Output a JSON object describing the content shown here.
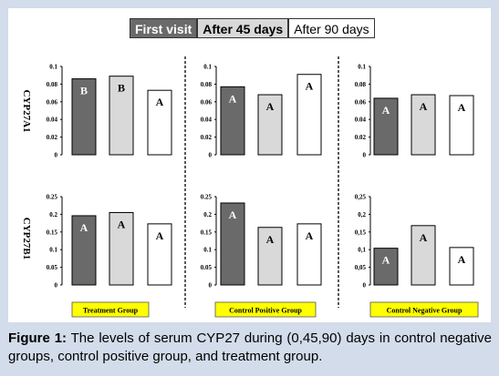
{
  "legend": [
    {
      "label": "First visit",
      "style": "dark"
    },
    {
      "label": "After 45 days",
      "style": "light"
    },
    {
      "label": "After 90 days",
      "style": "white"
    }
  ],
  "colors": {
    "first_visit": "#6a6a6a",
    "after_45": "#d9d9d9",
    "after_90": "#ffffff",
    "group_label_bg": "#ffff00",
    "background": "#d3dcea"
  },
  "row_labels": [
    "CYP27A1",
    "CYP27B1"
  ],
  "group_labels": [
    "Treatment Group",
    "Control Positive Group",
    "Control Negative Group"
  ],
  "caption": {
    "prefix": "Figure 1:",
    "text": " The levels of serum CYP27 during (0,45,90) days in control negative groups, control positive group, and treatment group."
  },
  "chart_data": [
    {
      "type": "bar",
      "group": "Treatment Group",
      "gene": "CYP27A1",
      "ylim": [
        0,
        0.1
      ],
      "yticks": [
        "0",
        "0.02",
        "0.04",
        "0.06",
        "0.08",
        "0.1"
      ],
      "categories": [
        "First visit",
        "After 45 days",
        "After 90 days"
      ],
      "values": [
        0.086,
        0.089,
        0.073
      ],
      "labels": [
        "B",
        "B",
        "A"
      ]
    },
    {
      "type": "bar",
      "group": "Control Positive Group",
      "gene": "CYP27A1",
      "ylim": [
        0,
        0.1
      ],
      "yticks": [
        "0",
        "0.02",
        "0.04",
        "0.06",
        "0.08",
        "0.1"
      ],
      "categories": [
        "First visit",
        "After 45 days",
        "After 90 days"
      ],
      "values": [
        0.077,
        0.068,
        0.091
      ],
      "labels": [
        "A",
        "A",
        "A"
      ]
    },
    {
      "type": "bar",
      "group": "Control Negative Group",
      "gene": "CYP27A1",
      "ylim": [
        0,
        0.1
      ],
      "yticks": [
        "0",
        "0.02",
        "0.04",
        "0.06",
        "0.08",
        "0.1"
      ],
      "categories": [
        "First visit",
        "After 45 days",
        "After 90 days"
      ],
      "values": [
        0.064,
        0.068,
        0.067
      ],
      "labels": [
        "A",
        "A",
        "A"
      ]
    },
    {
      "type": "bar",
      "group": "Treatment Group",
      "gene": "CYP27B1",
      "ylim": [
        0,
        0.25
      ],
      "yticks": [
        "0",
        "0.05",
        "0.1",
        "0.15",
        "0.2",
        "0.25"
      ],
      "categories": [
        "First visit",
        "After 45 days",
        "After 90 days"
      ],
      "values": [
        0.196,
        0.205,
        0.173
      ],
      "labels": [
        "A",
        "A",
        "A"
      ]
    },
    {
      "type": "bar",
      "group": "Control Positive Group",
      "gene": "CYP27B1",
      "ylim": [
        0,
        0.25
      ],
      "yticks": [
        "0",
        "0.05",
        "0.1",
        "0.15",
        "0.2",
        "0.25"
      ],
      "categories": [
        "First visit",
        "After 45 days",
        "After 90 days"
      ],
      "values": [
        0.232,
        0.163,
        0.173
      ],
      "labels": [
        "A",
        "A",
        "A"
      ]
    },
    {
      "type": "bar",
      "group": "Control Negative Group",
      "gene": "CYP27B1",
      "ylim": [
        0,
        0.25
      ],
      "yticks": [
        "0",
        "0,05",
        "0,1",
        "0,15",
        "0,2",
        "0,25"
      ],
      "categories": [
        "First visit",
        "After 45 days",
        "After 90 days"
      ],
      "values": [
        0.104,
        0.168,
        0.106
      ],
      "labels": [
        "A",
        "A",
        "A"
      ]
    }
  ]
}
